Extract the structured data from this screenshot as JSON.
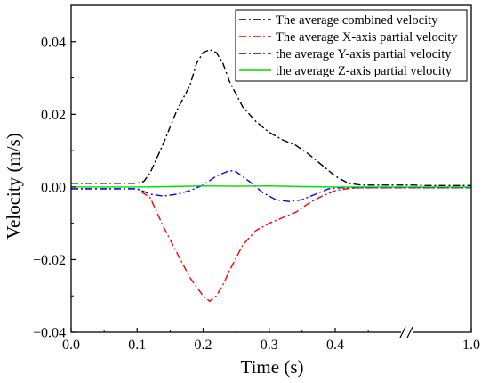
{
  "chart_data": {
    "type": "line",
    "xlabel": "Time (s)",
    "ylabel": "Velocity (m/s)",
    "xlim": [
      0.0,
      1.0
    ],
    "ylim": [
      -0.04,
      0.05
    ],
    "x_axis_break": [
      0.47,
      0.9
    ],
    "x_ticks": [
      {
        "value": 0.0,
        "label": "0.0"
      },
      {
        "value": 0.1,
        "label": "0.1"
      },
      {
        "value": 0.2,
        "label": "0.2"
      },
      {
        "value": 0.3,
        "label": "0.3"
      },
      {
        "value": 0.4,
        "label": "0.4"
      },
      {
        "value": 1.0,
        "label": "1.0"
      }
    ],
    "y_ticks": [
      {
        "value": 0.04,
        "label": "0.04"
      },
      {
        "value": 0.02,
        "label": "0.02"
      },
      {
        "value": 0.0,
        "label": "0.00"
      },
      {
        "value": -0.02,
        "label": "−0.02"
      },
      {
        "value": -0.04,
        "label": "−0.04"
      }
    ],
    "grid": false,
    "legend_position": "top-right",
    "series": [
      {
        "name": "The average combined velocity",
        "color": "#000000",
        "dash": "dashdot",
        "x": [
          0.0,
          0.1,
          0.11,
          0.12,
          0.14,
          0.16,
          0.18,
          0.19,
          0.2,
          0.21,
          0.22,
          0.23,
          0.24,
          0.26,
          0.28,
          0.3,
          0.32,
          0.34,
          0.36,
          0.38,
          0.4,
          0.42,
          0.44,
          0.46,
          0.9,
          0.92,
          0.96,
          1.0
        ],
        "y": [
          0.001,
          0.001,
          0.0015,
          0.004,
          0.012,
          0.021,
          0.028,
          0.034,
          0.037,
          0.0378,
          0.037,
          0.034,
          0.029,
          0.022,
          0.018,
          0.015,
          0.013,
          0.0115,
          0.009,
          0.006,
          0.003,
          0.001,
          0.0005,
          0.0005,
          0.0005,
          0.0004,
          0.0004,
          0.0004
        ]
      },
      {
        "name": "The average X-axis partial velocity",
        "color": "#ff0000",
        "dash": "dashdot",
        "x": [
          0.0,
          0.1,
          0.12,
          0.14,
          0.16,
          0.18,
          0.2,
          0.21,
          0.22,
          0.23,
          0.24,
          0.26,
          0.28,
          0.3,
          0.32,
          0.34,
          0.36,
          0.38,
          0.4,
          0.42,
          0.44,
          0.46,
          0.9,
          0.92,
          0.96,
          1.0
        ],
        "y": [
          -0.0005,
          -0.0005,
          -0.003,
          -0.011,
          -0.018,
          -0.025,
          -0.03,
          -0.0315,
          -0.03,
          -0.027,
          -0.023,
          -0.016,
          -0.012,
          -0.01,
          -0.0085,
          -0.007,
          -0.0045,
          -0.0025,
          -0.001,
          -0.0004,
          -0.0002,
          -0.0002,
          -0.0002,
          -0.0002,
          -0.0002,
          -0.0002
        ]
      },
      {
        "name": "the average Y-axis partial velocity",
        "color": "#0000ff",
        "dash": "dashdot",
        "x": [
          0.0,
          0.1,
          0.12,
          0.14,
          0.16,
          0.18,
          0.2,
          0.22,
          0.24,
          0.25,
          0.27,
          0.29,
          0.31,
          0.33,
          0.35,
          0.37,
          0.39,
          0.41,
          0.43,
          0.46,
          0.9,
          0.92,
          0.96,
          1.0
        ],
        "y": [
          -0.0005,
          -0.0005,
          -0.002,
          -0.0025,
          -0.002,
          -0.001,
          0.0005,
          0.003,
          0.0045,
          0.0042,
          0.0015,
          -0.0015,
          -0.0035,
          -0.004,
          -0.0035,
          -0.002,
          -0.0005,
          -0.0002,
          -0.0002,
          -0.0002,
          -0.0002,
          -0.0002,
          -0.0002,
          -0.0002
        ]
      },
      {
        "name": "the average Z-axis partial velocity",
        "color": "#00dd00",
        "dash": "solid",
        "x": [
          0.0,
          0.1,
          0.15,
          0.2,
          0.25,
          0.3,
          0.35,
          0.4,
          0.45,
          0.47,
          0.9,
          0.95,
          1.0
        ],
        "y": [
          0.0,
          0.0,
          0.0001,
          0.0003,
          0.0002,
          0.0003,
          0.0001,
          0.0,
          0.0,
          0.0,
          0.0,
          0.0,
          0.0
        ]
      }
    ]
  }
}
